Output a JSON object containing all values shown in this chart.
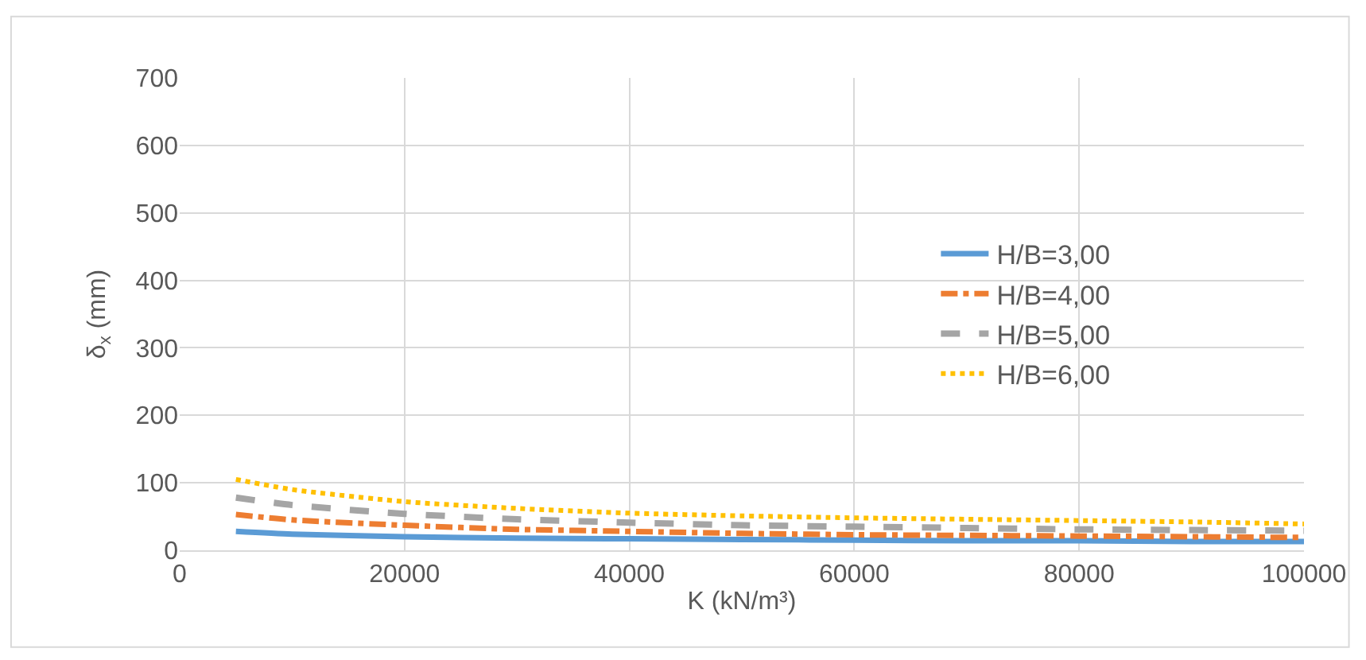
{
  "chart_data": {
    "type": "line",
    "xlabel": "K (kN/m³)",
    "ylabel": "δ$_{x}$ (mm)",
    "x": [
      5000,
      10000,
      20000,
      30000,
      40000,
      50000,
      60000,
      70000,
      80000,
      90000,
      100000
    ],
    "series": [
      {
        "name": "H/B=3,00",
        "color": "#5b9bd5",
        "line_style": "solid",
        "values": [
          28,
          24,
          20,
          18,
          17,
          16,
          15,
          14,
          14,
          13,
          13
        ]
      },
      {
        "name": "H/B=4,00",
        "color": "#ed7d31",
        "line_style": "dashdot",
        "values": [
          53,
          45,
          37,
          31,
          28,
          25,
          23,
          22,
          21,
          20,
          19
        ]
      },
      {
        "name": "H/B=5,00",
        "color": "#a5a5a5",
        "line_style": "dashed",
        "values": [
          78,
          67,
          54,
          46,
          41,
          37,
          35,
          33,
          31,
          30,
          29
        ]
      },
      {
        "name": "H/B=6,00",
        "color": "#ffc000",
        "line_style": "dotted",
        "values": [
          105,
          90,
          72,
          62,
          55,
          51,
          48,
          46,
          44,
          42,
          39
        ]
      }
    ],
    "xlim": [
      0,
      100000
    ],
    "xticks": [
      0,
      20000,
      40000,
      60000,
      80000,
      100000
    ],
    "ylim": [
      0,
      700
    ],
    "yticks": [
      0,
      100,
      200,
      300,
      400,
      500,
      600,
      700
    ],
    "grid": true,
    "legend": "right",
    "marker": "none"
  }
}
